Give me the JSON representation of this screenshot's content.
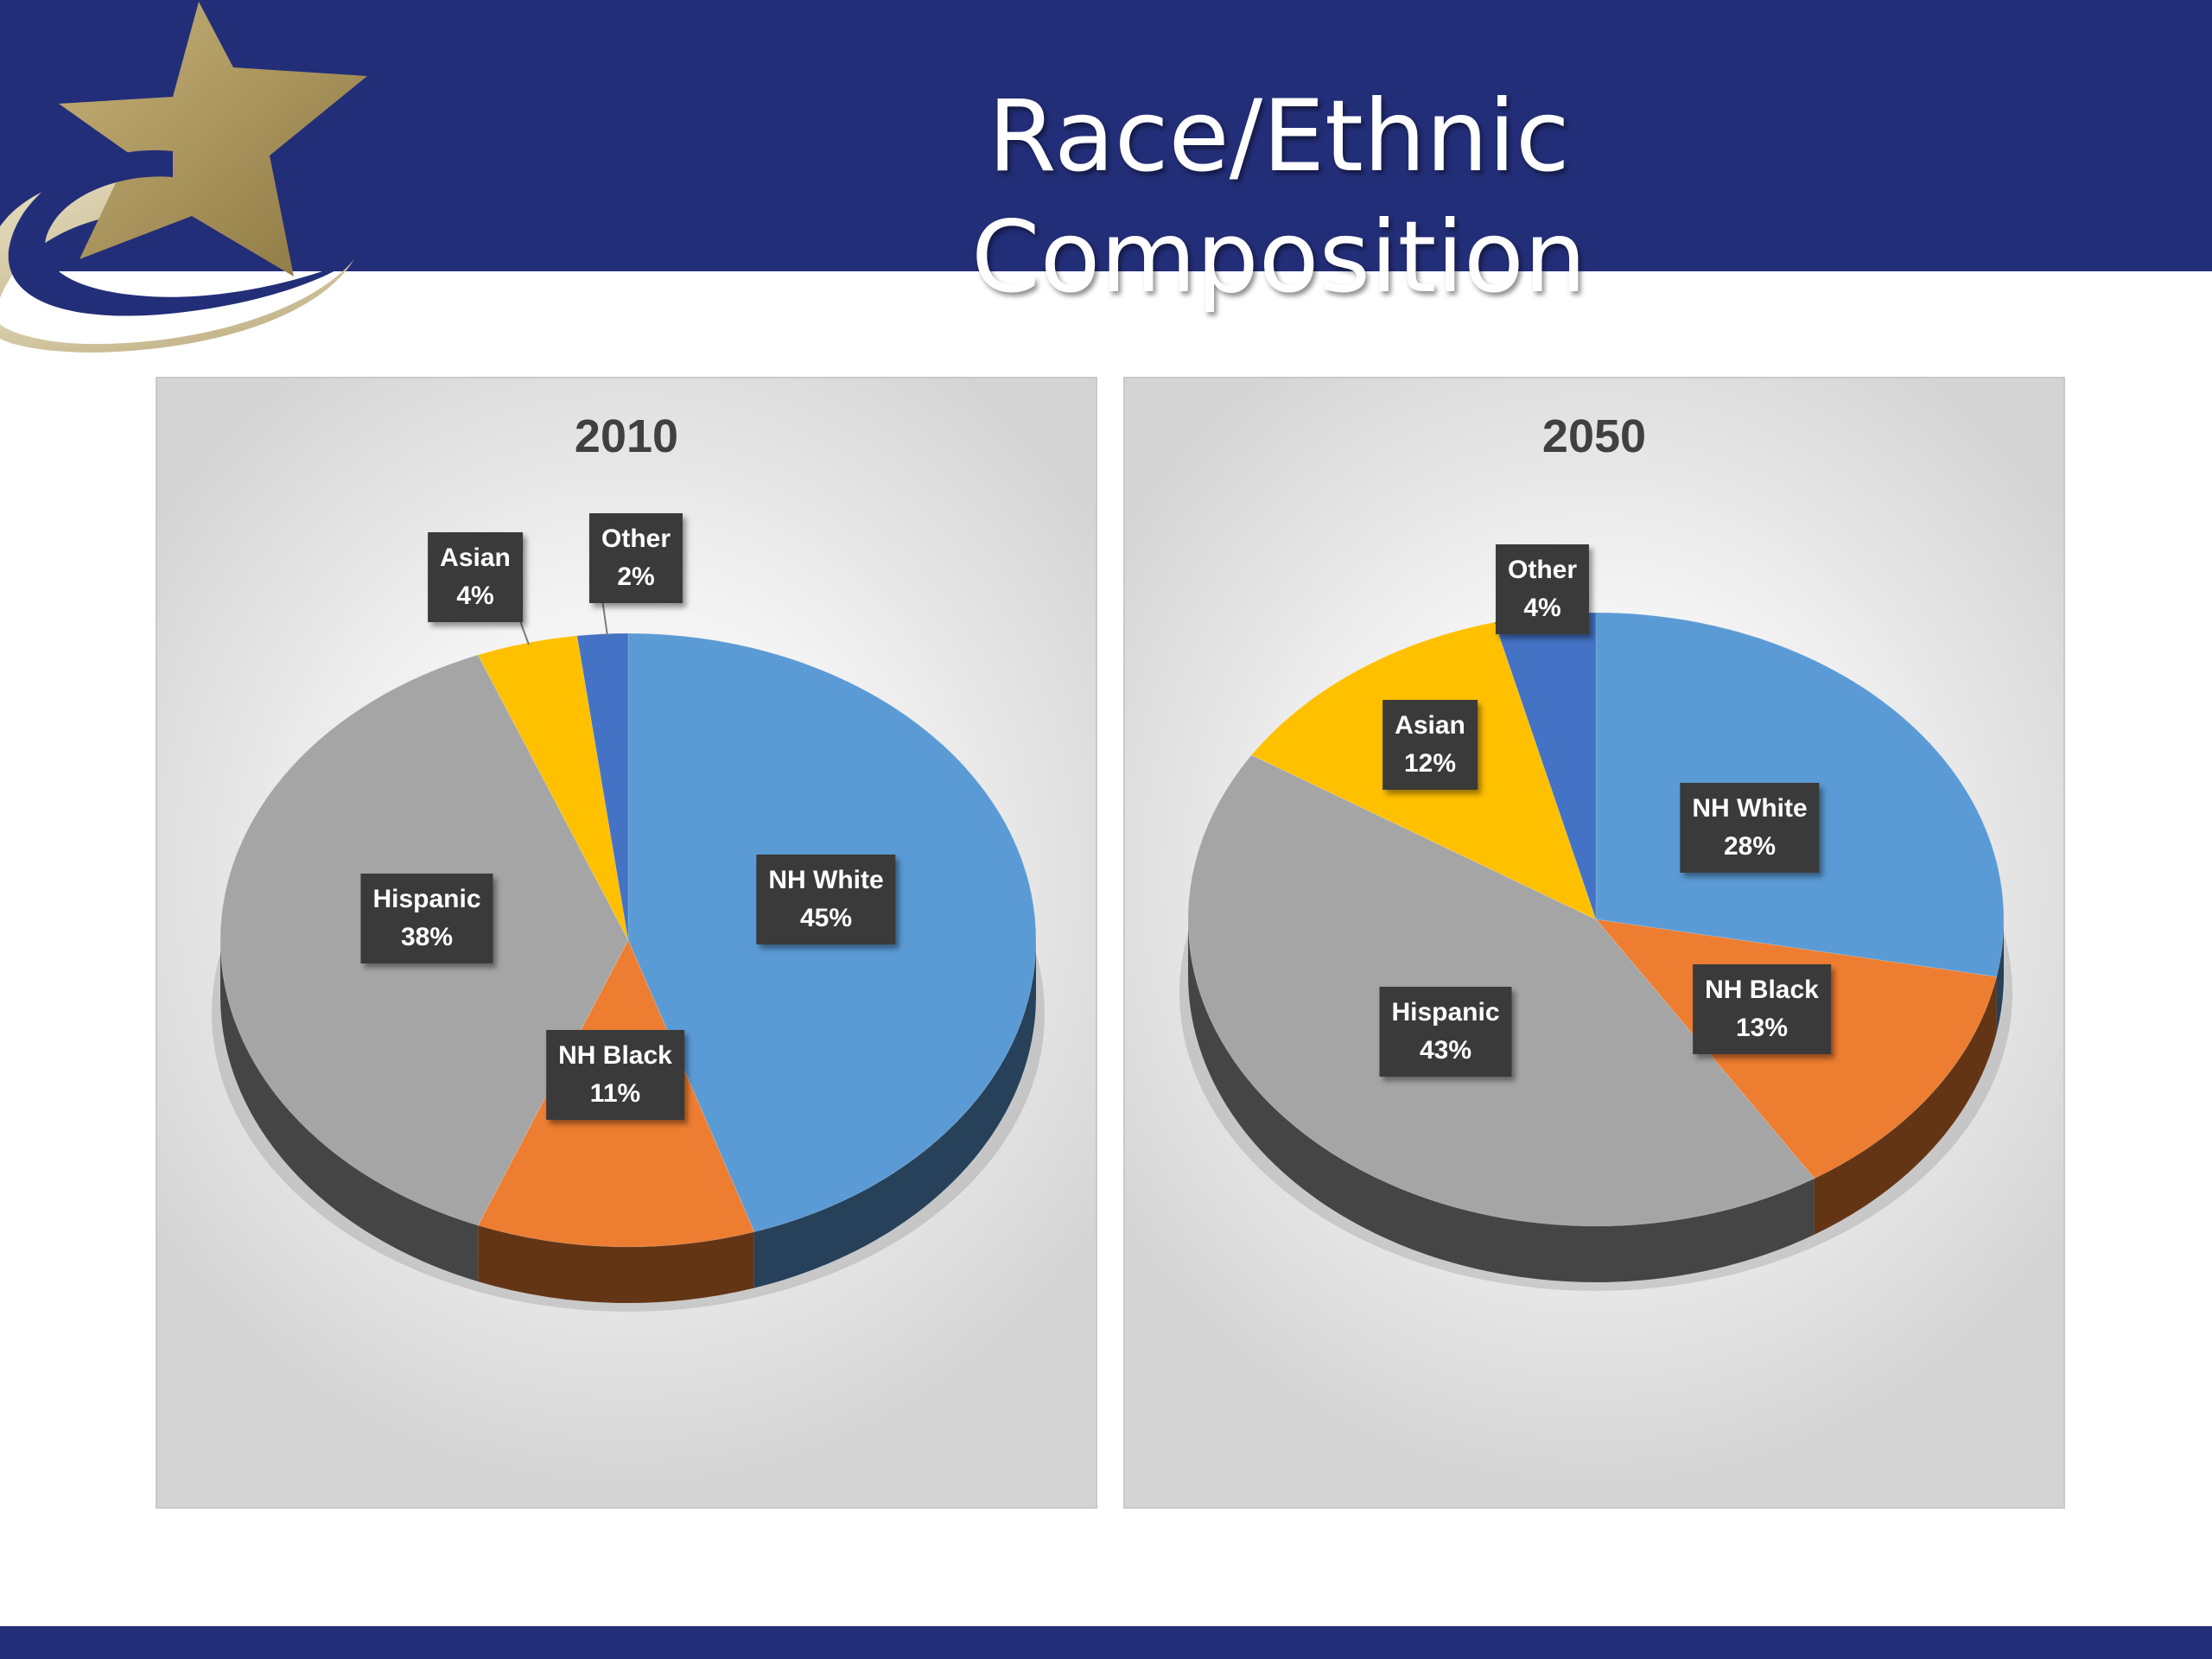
{
  "slide": {
    "title": "Race/Ethnic Composition"
  },
  "theme": {
    "header_color": "#232e78",
    "logo_gold": "#a8925a",
    "logo_blue": "#232e78"
  },
  "chart_data": [
    {
      "type": "pie",
      "title": "2010",
      "slices": [
        {
          "label": "NH White",
          "value": 45,
          "display": "45%",
          "color": "#5b9bd5"
        },
        {
          "label": "NH Black",
          "value": 11,
          "display": "11%",
          "color": "#ed7d31"
        },
        {
          "label": "Hispanic",
          "value": 38,
          "display": "38%",
          "color": "#a5a5a5"
        },
        {
          "label": "Asian",
          "value": 4,
          "display": "4%",
          "color": "#ffc000"
        },
        {
          "label": "Other",
          "value": 2,
          "display": "2%",
          "color": "#4472c4"
        }
      ]
    },
    {
      "type": "pie",
      "title": "2050",
      "slices": [
        {
          "label": "NH White",
          "value": 28,
          "display": "28%",
          "color": "#5b9bd5"
        },
        {
          "label": "NH Black",
          "value": 13,
          "display": "13%",
          "color": "#ed7d31"
        },
        {
          "label": "Hispanic",
          "value": 43,
          "display": "43%",
          "color": "#a5a5a5"
        },
        {
          "label": "Asian",
          "value": 12,
          "display": "12%",
          "color": "#ffc000"
        },
        {
          "label": "Other",
          "value": 4,
          "display": "4%",
          "color": "#4472c4"
        }
      ]
    }
  ]
}
